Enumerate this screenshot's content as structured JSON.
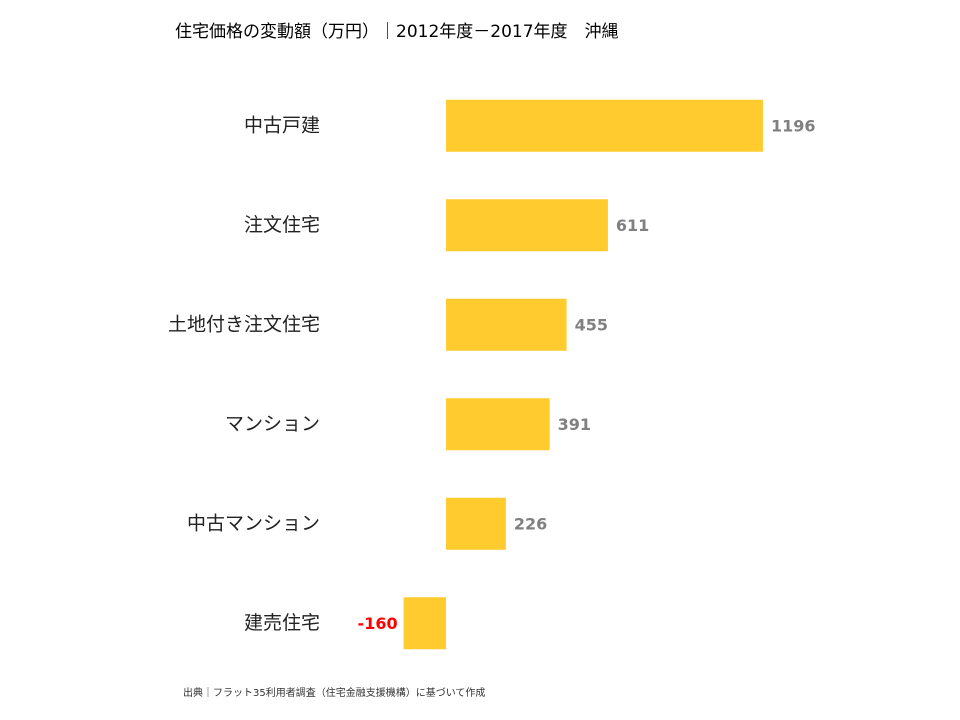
{
  "chart_data": {
    "type": "hbar",
    "title": "住宅価格の変動額（万円）｜2012年度－2017年度　沖縄",
    "categories": [
      "中古戸建",
      "注文住宅",
      "土地付き注文住宅",
      "マンション",
      "中古マンション",
      "建売住宅"
    ],
    "values": [
      1196,
      611,
      455,
      391,
      226,
      -160
    ],
    "color": "#FFCB2F",
    "value_label_color": "#808080",
    "negative_value_label_color": "#FF0000",
    "xlim": [
      -400,
      1600
    ],
    "footnote": "出典｜フラット35利用者調査（住宅金融支援機構）に基づいて作成"
  }
}
